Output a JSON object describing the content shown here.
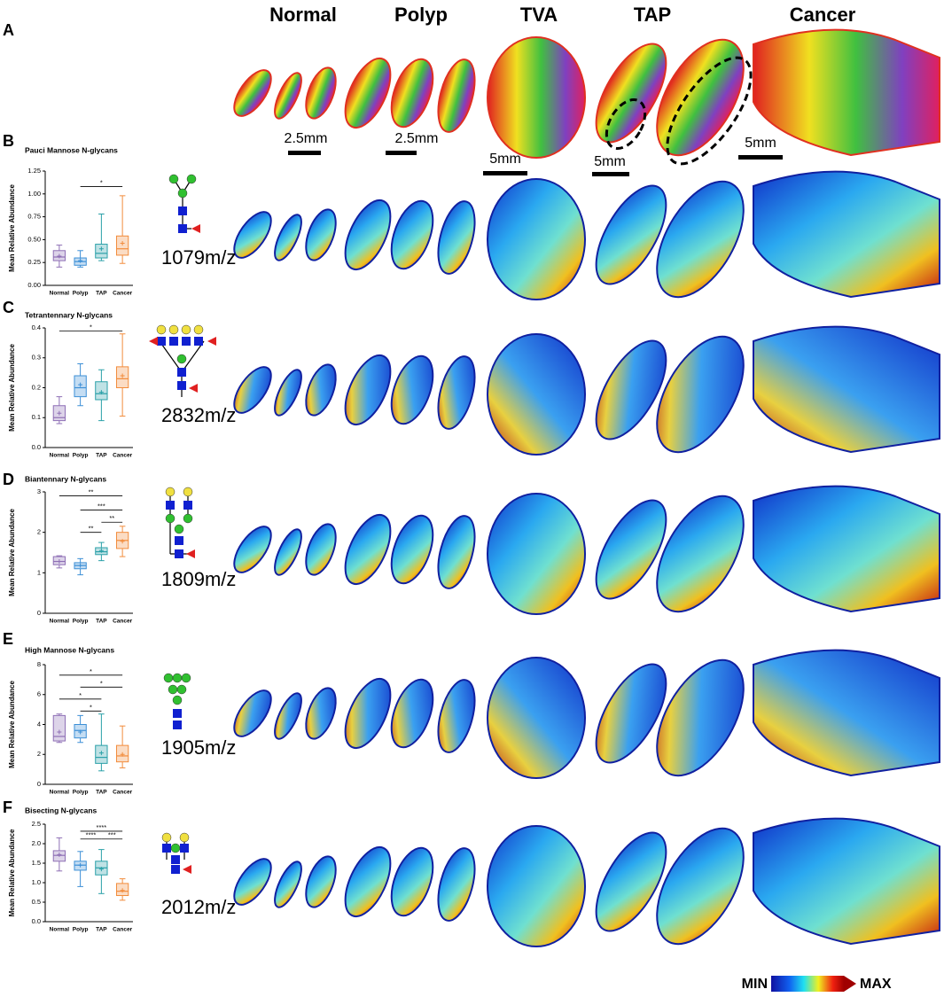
{
  "panel_labels": [
    "A",
    "B",
    "C",
    "D",
    "E",
    "F"
  ],
  "columns": [
    "Normal",
    "Polyp",
    "TVA",
    "TAP",
    "Cancer"
  ],
  "scale_bars": [
    "2.5mm",
    "2.5mm",
    "5mm",
    "5mm",
    "5mm"
  ],
  "mz_labels": [
    "1079m/z",
    "2832m/z",
    "1809m/z",
    "1905m/z",
    "2012m/z"
  ],
  "colorbar": {
    "min_label": "MIN",
    "max_label": "MAX"
  },
  "chart_data": [
    {
      "type": "box",
      "title": "Pauci Mannose N-glycans",
      "y_label": "Mean Relative Abundance",
      "categories": [
        "Normal",
        "Polyp",
        "TAP",
        "Cancer"
      ],
      "colors": [
        "#8e6fb5",
        "#3c8fd6",
        "#2aa0a8",
        "#f28c3c"
      ],
      "boxes": [
        {
          "min": 0.2,
          "q1": 0.27,
          "median": 0.31,
          "q3": 0.38,
          "max": 0.44,
          "mean": 0.32
        },
        {
          "min": 0.2,
          "q1": 0.22,
          "median": 0.26,
          "q3": 0.3,
          "max": 0.38,
          "mean": 0.27
        },
        {
          "min": 0.27,
          "q1": 0.3,
          "median": 0.35,
          "q3": 0.45,
          "max": 0.78,
          "mean": 0.4
        },
        {
          "min": 0.24,
          "q1": 0.33,
          "median": 0.4,
          "q3": 0.54,
          "max": 0.98,
          "mean": 0.46
        }
      ],
      "significance": [
        {
          "groups": [
            1,
            3
          ],
          "y": 1.08,
          "label": "*"
        }
      ],
      "ylim": [
        0,
        1.25
      ],
      "yticks": [
        {
          "value": 0,
          "label": "0.00"
        },
        0.25,
        {
          "value": 0.5,
          "label": "0.50"
        },
        0.75,
        {
          "value": 1,
          "label": "1.00"
        },
        1.25
      ]
    },
    {
      "type": "box",
      "title": "Tetrantennary N-glycans",
      "y_label": "Mean Relative Abundance",
      "categories": [
        "Normal",
        "Polyp",
        "TAP",
        "Cancer"
      ],
      "colors": [
        "#8e6fb5",
        "#3c8fd6",
        "#2aa0a8",
        "#f28c3c"
      ],
      "boxes": [
        {
          "min": 0.08,
          "q1": 0.09,
          "median": 0.1,
          "q3": 0.14,
          "max": 0.17,
          "mean": 0.115
        },
        {
          "min": 0.14,
          "q1": 0.17,
          "median": 0.2,
          "q3": 0.24,
          "max": 0.28,
          "mean": 0.21
        },
        {
          "min": 0.09,
          "q1": 0.16,
          "median": 0.18,
          "q3": 0.22,
          "max": 0.26,
          "mean": 0.185
        },
        {
          "min": 0.105,
          "q1": 0.2,
          "median": 0.23,
          "q3": 0.27,
          "max": 0.38,
          "mean": 0.24
        }
      ],
      "significance": [
        {
          "groups": [
            0,
            3
          ],
          "y": 0.39,
          "label": "*"
        }
      ],
      "ylim": [
        0,
        0.4
      ],
      "yticks": [
        {
          "value": 0,
          "label": "0.0"
        },
        0.1,
        0.2,
        0.3,
        0.4
      ]
    },
    {
      "type": "box",
      "title": "Biantennary N-glycans",
      "y_label": "Mean Relative Abundance",
      "categories": [
        "Normal",
        "Polyp",
        "TAP",
        "Cancer"
      ],
      "colors": [
        "#8e6fb5",
        "#3c8fd6",
        "#2aa0a8",
        "#f28c3c"
      ],
      "boxes": [
        {
          "min": 1.12,
          "q1": 1.2,
          "median": 1.28,
          "q3": 1.4,
          "max": 1.42,
          "mean": 1.28
        },
        {
          "min": 0.95,
          "q1": 1.1,
          "median": 1.18,
          "q3": 1.25,
          "max": 1.35,
          "mean": 1.18
        },
        {
          "min": 1.3,
          "q1": 1.45,
          "median": 1.52,
          "q3": 1.62,
          "max": 1.75,
          "mean": 1.55
        },
        {
          "min": 1.4,
          "q1": 1.6,
          "median": 1.8,
          "q3": 2.0,
          "max": 2.15,
          "mean": 1.78
        }
      ],
      "significance": [
        {
          "groups": [
            0,
            3
          ],
          "y": 2.9,
          "label": "**"
        },
        {
          "groups": [
            1,
            3
          ],
          "y": 2.55,
          "label": "***"
        },
        {
          "groups": [
            2,
            3
          ],
          "y": 2.25,
          "label": "**"
        },
        {
          "groups": [
            1,
            2
          ],
          "y": 2.0,
          "label": "**"
        }
      ],
      "ylim": [
        0,
        3
      ],
      "yticks": [
        0,
        1,
        2,
        3
      ]
    },
    {
      "type": "box",
      "title": "High Mannose N-glycans",
      "y_label": "Mean Relative Abundance",
      "categories": [
        "Normal",
        "Polyp",
        "TAP",
        "Cancer"
      ],
      "colors": [
        "#8e6fb5",
        "#3c8fd6",
        "#2aa0a8",
        "#f28c3c"
      ],
      "boxes": [
        {
          "min": 2.8,
          "q1": 2.9,
          "median": 3.2,
          "q3": 4.6,
          "max": 4.7,
          "mean": 3.5
        },
        {
          "min": 2.8,
          "q1": 3.1,
          "median": 3.6,
          "q3": 4.0,
          "max": 4.6,
          "mean": 3.5
        },
        {
          "min": 0.9,
          "q1": 1.4,
          "median": 1.8,
          "q3": 2.6,
          "max": 4.7,
          "mean": 2.1
        },
        {
          "min": 1.1,
          "q1": 1.5,
          "median": 1.9,
          "q3": 2.6,
          "max": 3.9,
          "mean": 2.0
        }
      ],
      "significance": [
        {
          "groups": [
            0,
            3
          ],
          "y": 7.3,
          "label": "*"
        },
        {
          "groups": [
            1,
            3
          ],
          "y": 6.5,
          "label": "*"
        },
        {
          "groups": [
            0,
            2
          ],
          "y": 5.7,
          "label": "*"
        },
        {
          "groups": [
            1,
            2
          ],
          "y": 4.9,
          "label": "*"
        }
      ],
      "ylim": [
        0,
        8
      ],
      "yticks": [
        0,
        2,
        4,
        6,
        8
      ]
    },
    {
      "type": "box",
      "title": "Bisecting N-glycans",
      "y_label": "Mean Relative Abundance",
      "categories": [
        "Normal",
        "Polyp",
        "TAP",
        "Cancer"
      ],
      "colors": [
        "#8e6fb5",
        "#3c8fd6",
        "#2aa0a8",
        "#f28c3c"
      ],
      "boxes": [
        {
          "min": 1.3,
          "q1": 1.55,
          "median": 1.7,
          "q3": 1.82,
          "max": 2.15,
          "mean": 1.72
        },
        {
          "min": 0.9,
          "q1": 1.32,
          "median": 1.45,
          "q3": 1.55,
          "max": 1.8,
          "mean": 1.45
        },
        {
          "min": 0.72,
          "q1": 1.2,
          "median": 1.38,
          "q3": 1.55,
          "max": 1.85,
          "mean": 1.35
        },
        {
          "min": 0.55,
          "q1": 0.67,
          "median": 0.78,
          "q3": 0.98,
          "max": 1.1,
          "mean": 0.8
        }
      ],
      "significance": [
        {
          "groups": [
            1,
            3
          ],
          "y": 2.32,
          "label": "****"
        },
        {
          "groups": [
            1,
            2
          ],
          "y": 2.12,
          "label": "****"
        },
        {
          "groups": [
            2,
            3
          ],
          "y": 2.12,
          "label": "***"
        }
      ],
      "ylim": [
        0,
        2.5
      ],
      "yticks": [
        {
          "value": 0,
          "label": "0.0"
        },
        0.5,
        {
          "value": 1,
          "label": "1.0"
        },
        1.5,
        {
          "value": 2,
          "label": "2.0"
        },
        2.5
      ]
    }
  ]
}
